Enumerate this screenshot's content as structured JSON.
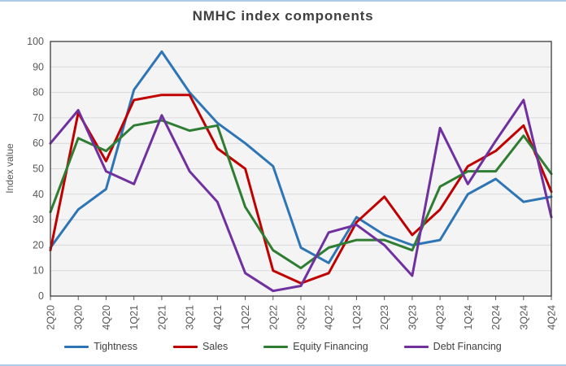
{
  "window": {
    "accent_line_color": "#aecbe8"
  },
  "chart": {
    "title": "NMHC index components",
    "y_axis_title": "Index value"
  },
  "chart_data": {
    "type": "line",
    "title": "NMHC index components",
    "xlabel": "",
    "ylabel": "Index value",
    "ylim": [
      0,
      100
    ],
    "y_ticks": [
      0,
      10,
      20,
      30,
      40,
      50,
      60,
      70,
      80,
      90,
      100
    ],
    "grid": true,
    "legend_position": "bottom",
    "x_label_rotation": 90,
    "categories": [
      "2Q20",
      "3Q20",
      "4Q20",
      "1Q21",
      "2Q21",
      "3Q21",
      "4Q21",
      "1Q22",
      "2Q22",
      "3Q22",
      "4Q22",
      "1Q23",
      "2Q23",
      "3Q23",
      "4Q23",
      "1Q24",
      "2Q24",
      "3Q24",
      "4Q24"
    ],
    "series": [
      {
        "name": "Tightness",
        "color": "#2E75B6",
        "values": [
          19,
          34,
          42,
          81,
          96,
          80,
          68,
          60,
          51,
          19,
          13,
          31,
          24,
          20,
          22,
          40,
          46,
          37,
          39
        ]
      },
      {
        "name": "Sales",
        "color": "#C00000",
        "values": [
          18,
          72,
          53,
          77,
          79,
          79,
          58,
          50,
          10,
          5,
          9,
          29,
          39,
          24,
          34,
          51,
          57,
          67,
          41
        ]
      },
      {
        "name": "Equity Financing",
        "color": "#2E7D32",
        "values": [
          33,
          62,
          57,
          67,
          69,
          65,
          67,
          35,
          18,
          11,
          19,
          22,
          22,
          18,
          43,
          49,
          49,
          63,
          48
        ]
      },
      {
        "name": "Debt Financing",
        "color": "#7030A0",
        "values": [
          60,
          73,
          49,
          44,
          71,
          49,
          37,
          9,
          2,
          4,
          25,
          28,
          20,
          8,
          66,
          44,
          61,
          77,
          31
        ]
      }
    ]
  },
  "styles": {
    "plot_bg": "#f4f4f4",
    "grid_color": "#d9d9d9",
    "plot_border_color": "#3b3b3b",
    "tick_color": "#595959",
    "tick_label_color": "#595959",
    "title_color": "#404040",
    "legend_text_color": "#404040"
  }
}
